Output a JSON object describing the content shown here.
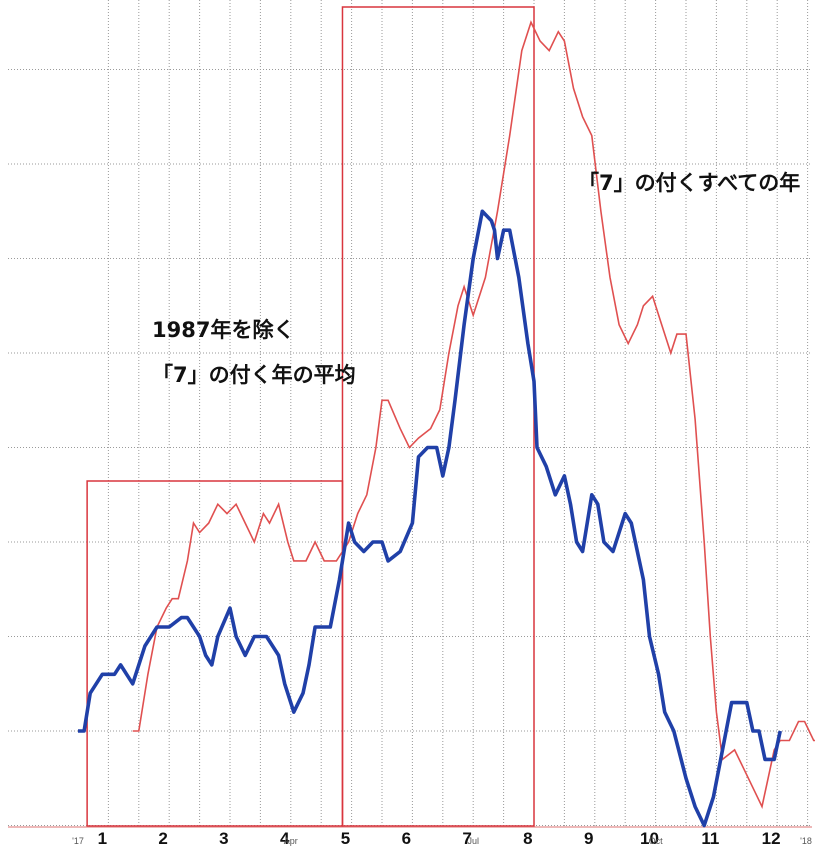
{
  "chart_data": {
    "type": "line",
    "grid": true,
    "x_range": [
      0,
      12.3
    ],
    "y_range": [
      -1,
      8.5
    ],
    "month_ticks": [
      "1",
      "2",
      "3",
      "4",
      "5",
      "6",
      "7",
      "8",
      "9",
      "10",
      "11",
      "12"
    ],
    "minor_ticks": [
      {
        "label": "'17",
        "x": 0.0
      },
      {
        "label": "Apr",
        "x": 3.5
      },
      {
        "label": "Jul",
        "x": 6.5
      },
      {
        "label": "Oct",
        "x": 9.5
      },
      {
        "label": "'18",
        "x": 12.3
      }
    ],
    "highlight_ranges": [
      [
        0.15,
        4.35
      ],
      [
        4.35,
        7.5
      ]
    ],
    "annotations": [
      {
        "target": "all_7_years",
        "lines": [
          "「7」の付くすべての年"
        ]
      },
      {
        "target": "avg_7_years_ex1987",
        "lines": [
          "1987年を除く",
          "「7」の付く年の平均"
        ]
      }
    ],
    "series": [
      {
        "id": "avg_7_years_ex1987",
        "color": "#2040a8",
        "points": [
          [
            0.0,
            0.0
          ],
          [
            0.1,
            0.0
          ],
          [
            0.2,
            0.4
          ],
          [
            0.4,
            0.6
          ],
          [
            0.6,
            0.6
          ],
          [
            0.7,
            0.7
          ],
          [
            0.8,
            0.6
          ],
          [
            0.9,
            0.5
          ],
          [
            1.0,
            0.7
          ],
          [
            1.1,
            0.9
          ],
          [
            1.3,
            1.1
          ],
          [
            1.5,
            1.1
          ],
          [
            1.7,
            1.2
          ],
          [
            1.8,
            1.2
          ],
          [
            2.0,
            1.0
          ],
          [
            2.1,
            0.8
          ],
          [
            2.2,
            0.7
          ],
          [
            2.3,
            1.0
          ],
          [
            2.5,
            1.3
          ],
          [
            2.6,
            1.0
          ],
          [
            2.75,
            0.8
          ],
          [
            2.9,
            1.0
          ],
          [
            3.1,
            1.0
          ],
          [
            3.3,
            0.8
          ],
          [
            3.4,
            0.5
          ],
          [
            3.55,
            0.2
          ],
          [
            3.7,
            0.4
          ],
          [
            3.8,
            0.7
          ],
          [
            3.9,
            1.1
          ],
          [
            4.15,
            1.1
          ],
          [
            4.3,
            1.6
          ],
          [
            4.45,
            2.2
          ],
          [
            4.55,
            2.0
          ],
          [
            4.7,
            1.9
          ],
          [
            4.85,
            2.0
          ],
          [
            5.0,
            2.0
          ],
          [
            5.1,
            1.8
          ],
          [
            5.3,
            1.9
          ],
          [
            5.5,
            2.2
          ],
          [
            5.6,
            2.9
          ],
          [
            5.75,
            3.0
          ],
          [
            5.9,
            3.0
          ],
          [
            6.0,
            2.7
          ],
          [
            6.1,
            3.0
          ],
          [
            6.2,
            3.5
          ],
          [
            6.35,
            4.3
          ],
          [
            6.5,
            5.0
          ],
          [
            6.65,
            5.5
          ],
          [
            6.8,
            5.4
          ],
          [
            6.85,
            5.3
          ],
          [
            6.9,
            5.0
          ],
          [
            7.0,
            5.3
          ],
          [
            7.1,
            5.3
          ],
          [
            7.25,
            4.8
          ],
          [
            7.4,
            4.1
          ],
          [
            7.5,
            3.7
          ],
          [
            7.55,
            3.0
          ],
          [
            7.7,
            2.8
          ],
          [
            7.85,
            2.5
          ],
          [
            8.0,
            2.7
          ],
          [
            8.1,
            2.4
          ],
          [
            8.2,
            2.0
          ],
          [
            8.3,
            1.9
          ],
          [
            8.45,
            2.5
          ],
          [
            8.55,
            2.4
          ],
          [
            8.65,
            2.0
          ],
          [
            8.8,
            1.9
          ],
          [
            9.0,
            2.3
          ],
          [
            9.1,
            2.2
          ],
          [
            9.3,
            1.6
          ],
          [
            9.4,
            1.0
          ],
          [
            9.55,
            0.6
          ],
          [
            9.65,
            0.2
          ],
          [
            9.8,
            0.0
          ],
          [
            10.0,
            -0.5
          ],
          [
            10.15,
            -0.8
          ],
          [
            10.3,
            -1.0
          ],
          [
            10.45,
            -0.7
          ],
          [
            10.6,
            -0.2
          ],
          [
            10.75,
            0.3
          ],
          [
            10.85,
            0.3
          ],
          [
            11.0,
            0.3
          ],
          [
            11.1,
            0.0
          ],
          [
            11.2,
            0.0
          ],
          [
            11.3,
            -0.3
          ],
          [
            11.45,
            -0.3
          ],
          [
            11.55,
            0.0
          ]
        ]
      },
      {
        "id": "all_7_years",
        "color": "#e05050",
        "points": [
          [
            0.9,
            0.0
          ],
          [
            1.0,
            0.0
          ],
          [
            1.15,
            0.6
          ],
          [
            1.3,
            1.1
          ],
          [
            1.45,
            1.3
          ],
          [
            1.55,
            1.4
          ],
          [
            1.65,
            1.4
          ],
          [
            1.8,
            1.8
          ],
          [
            1.9,
            2.2
          ],
          [
            2.0,
            2.1
          ],
          [
            2.15,
            2.2
          ],
          [
            2.3,
            2.4
          ],
          [
            2.45,
            2.3
          ],
          [
            2.6,
            2.4
          ],
          [
            2.75,
            2.2
          ],
          [
            2.9,
            2.0
          ],
          [
            3.05,
            2.3
          ],
          [
            3.15,
            2.2
          ],
          [
            3.3,
            2.4
          ],
          [
            3.45,
            2.0
          ],
          [
            3.55,
            1.8
          ],
          [
            3.75,
            1.8
          ],
          [
            3.9,
            2.0
          ],
          [
            4.05,
            1.8
          ],
          [
            4.25,
            1.8
          ],
          [
            4.45,
            2.0
          ],
          [
            4.6,
            2.3
          ],
          [
            4.75,
            2.5
          ],
          [
            4.9,
            3.0
          ],
          [
            5.0,
            3.5
          ],
          [
            5.1,
            3.5
          ],
          [
            5.3,
            3.2
          ],
          [
            5.45,
            3.0
          ],
          [
            5.6,
            3.1
          ],
          [
            5.8,
            3.2
          ],
          [
            5.95,
            3.4
          ],
          [
            6.1,
            4.0
          ],
          [
            6.25,
            4.5
          ],
          [
            6.35,
            4.7
          ],
          [
            6.5,
            4.4
          ],
          [
            6.7,
            4.8
          ],
          [
            6.9,
            5.5
          ],
          [
            7.1,
            6.3
          ],
          [
            7.3,
            7.2
          ],
          [
            7.45,
            7.5
          ],
          [
            7.6,
            7.3
          ],
          [
            7.75,
            7.2
          ],
          [
            7.9,
            7.4
          ],
          [
            8.0,
            7.3
          ],
          [
            8.15,
            6.8
          ],
          [
            8.3,
            6.5
          ],
          [
            8.45,
            6.3
          ],
          [
            8.6,
            5.5
          ],
          [
            8.75,
            4.8
          ],
          [
            8.9,
            4.3
          ],
          [
            9.05,
            4.1
          ],
          [
            9.2,
            4.3
          ],
          [
            9.3,
            4.5
          ],
          [
            9.45,
            4.6
          ],
          [
            9.6,
            4.3
          ],
          [
            9.75,
            4.0
          ],
          [
            9.85,
            4.2
          ],
          [
            10.0,
            4.2
          ],
          [
            10.15,
            3.3
          ],
          [
            10.3,
            2.0
          ],
          [
            10.4,
            1.0
          ],
          [
            10.5,
            0.2
          ],
          [
            10.6,
            -0.3
          ],
          [
            10.8,
            -0.2
          ],
          [
            10.95,
            -0.4
          ],
          [
            11.1,
            -0.6
          ],
          [
            11.25,
            -0.8
          ],
          [
            11.35,
            -0.5
          ],
          [
            11.45,
            -0.2
          ],
          [
            11.55,
            -0.1
          ],
          [
            11.7,
            -0.1
          ],
          [
            11.85,
            0.1
          ],
          [
            11.95,
            0.1
          ],
          [
            12.1,
            -0.1
          ],
          [
            12.3,
            -0.1
          ]
        ]
      }
    ]
  }
}
